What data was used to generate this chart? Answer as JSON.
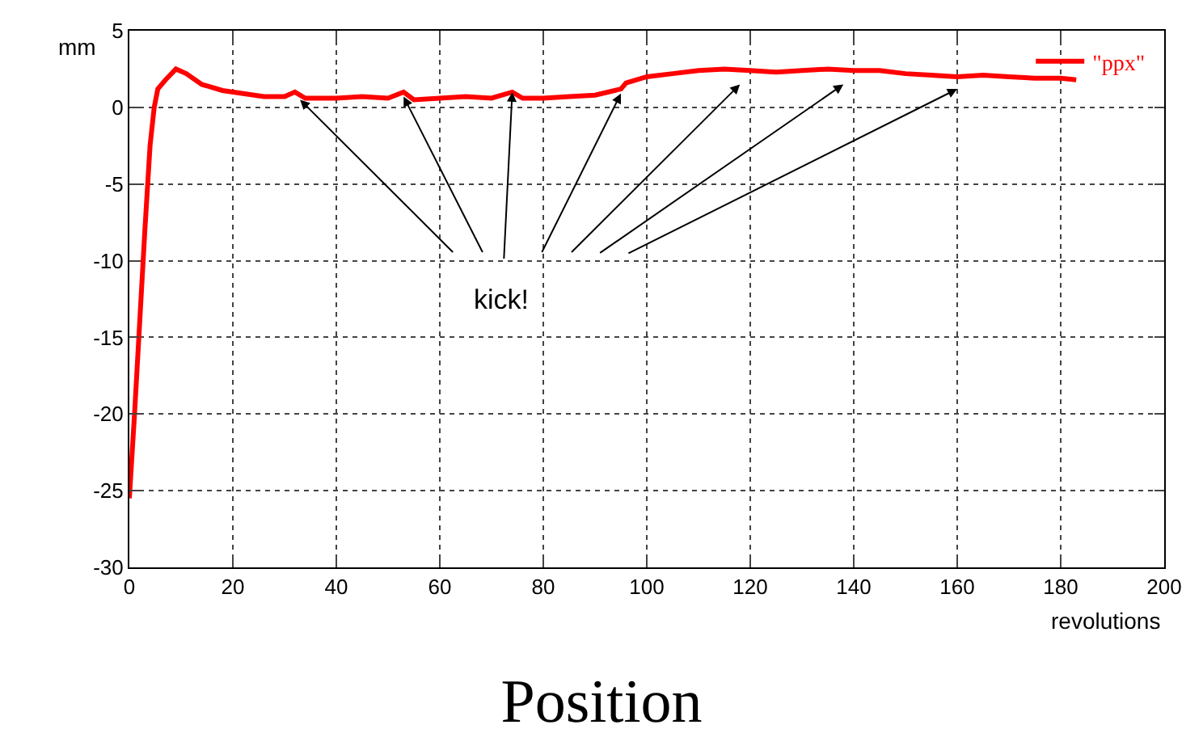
{
  "chart_data": {
    "type": "line",
    "title": "Position",
    "xlabel": "revolutions",
    "ylabel": "mm",
    "x": [
      0,
      1,
      2,
      3,
      4,
      4.8,
      5.5,
      7,
      9,
      11,
      14,
      18,
      22,
      26,
      30,
      32,
      34,
      40,
      45,
      50,
      53,
      55,
      60,
      65,
      70,
      74,
      76,
      80,
      85,
      90,
      95,
      96,
      100,
      105,
      110,
      115,
      120,
      125,
      130,
      135,
      140,
      145,
      150,
      155,
      160,
      165,
      170,
      175,
      180,
      183
    ],
    "series": [
      {
        "name": "\"ppx\"",
        "color": "#ff0000",
        "values": [
          -25.5,
          -20,
          -14,
          -8,
          -2.5,
          0,
          1.2,
          1.8,
          2.5,
          2.2,
          1.5,
          1.1,
          0.9,
          0.7,
          0.7,
          1.0,
          0.6,
          0.6,
          0.7,
          0.6,
          1.0,
          0.5,
          0.6,
          0.7,
          0.6,
          1.0,
          0.6,
          0.6,
          0.7,
          0.8,
          1.2,
          1.6,
          2.0,
          2.2,
          2.4,
          2.5,
          2.4,
          2.3,
          2.4,
          2.5,
          2.4,
          2.4,
          2.2,
          2.1,
          2.0,
          2.1,
          2.0,
          1.9,
          1.9,
          1.8
        ]
      }
    ],
    "annotations": [
      {
        "text": "kick!",
        "x": 74,
        "y": 1.0
      }
    ],
    "xlim": [
      0,
      200
    ],
    "xticks": [
      0,
      20,
      40,
      60,
      80,
      100,
      120,
      140,
      160,
      180,
      200
    ],
    "ylim": [
      -30,
      5
    ],
    "yticks": [
      -30,
      -25,
      -20,
      -15,
      -10,
      -5,
      0,
      5
    ],
    "grid": true,
    "legend": "top right",
    "line_style": "solid",
    "marker": "none"
  }
}
